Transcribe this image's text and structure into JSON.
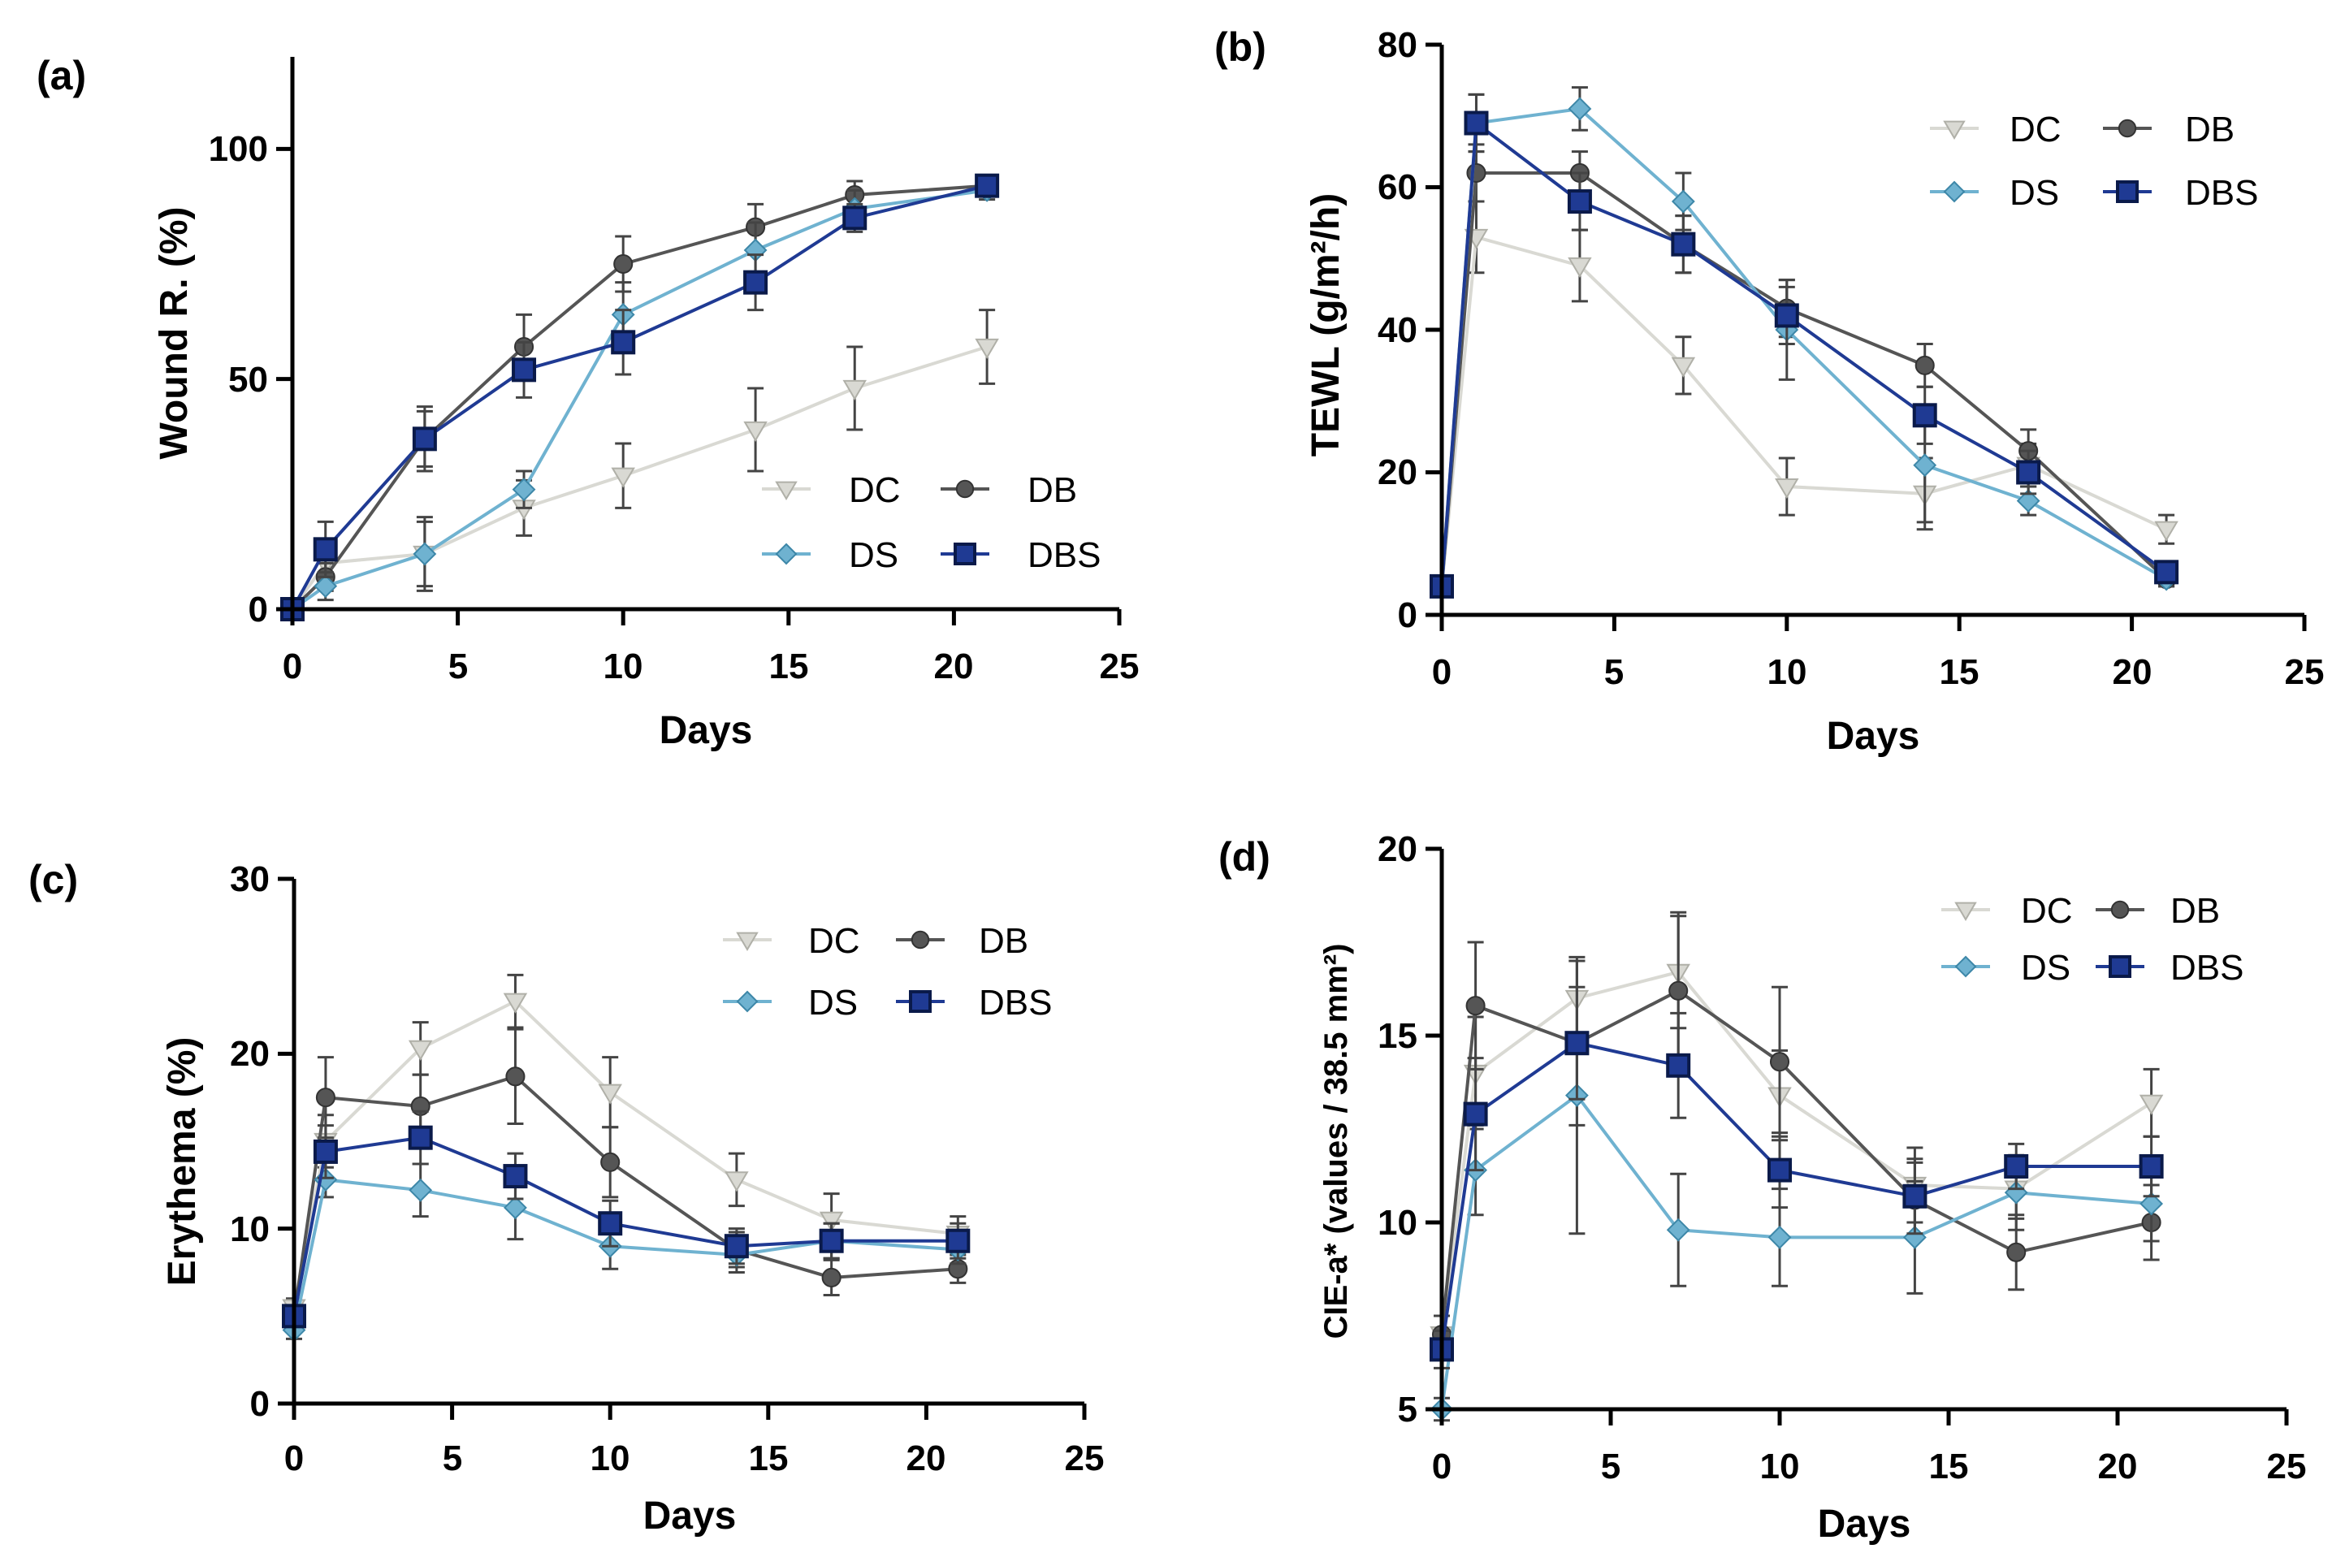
{
  "figure_title": "",
  "chart_data": [
    {
      "type": "line",
      "panel": "(a)",
      "title": "",
      "xlabel": "Days",
      "ylabel": "Wound R. (%)",
      "xlim": [
        0,
        25
      ],
      "ylim": [
        0,
        120
      ],
      "x_ticks": [
        "0",
        "5",
        "10",
        "15",
        "20",
        "25"
      ],
      "y_ticks": [
        "0",
        "50",
        "100"
      ],
      "legend_position": "bottom-right",
      "x": [
        0,
        1,
        4,
        7,
        10,
        14,
        17,
        21
      ],
      "series": [
        {
          "name": "DC",
          "color": "#d9d9d3",
          "marker": "triangle-down",
          "values": [
            0,
            10,
            12,
            22,
            29,
            39,
            48,
            57
          ],
          "errors": [
            0,
            4,
            8,
            6,
            7,
            9,
            9,
            8
          ]
        },
        {
          "name": "DB",
          "color": "#555555",
          "marker": "circle",
          "values": [
            0,
            7,
            37,
            57,
            75,
            83,
            90,
            92
          ],
          "errors": [
            0,
            3,
            6,
            7,
            6,
            5,
            3,
            2
          ]
        },
        {
          "name": "DS",
          "color": "#6fb2d0",
          "marker": "diamond",
          "values": [
            0,
            5,
            12,
            26,
            64,
            78,
            87,
            91
          ],
          "errors": [
            0,
            3,
            7,
            4,
            7,
            6,
            4,
            2
          ]
        },
        {
          "name": "DBS",
          "color": "#1f3a93",
          "marker": "square",
          "values": [
            0,
            13,
            37,
            52,
            58,
            71,
            85,
            92
          ],
          "errors": [
            0,
            6,
            7,
            6,
            7,
            6,
            3,
            2
          ]
        }
      ]
    },
    {
      "type": "line",
      "panel": "(b)",
      "title": "",
      "xlabel": "Days",
      "ylabel": "TEWL (g/m²/h)",
      "xlim": [
        0,
        25
      ],
      "ylim": [
        0,
        80
      ],
      "x_ticks": [
        "0",
        "5",
        "10",
        "15",
        "20",
        "25"
      ],
      "y_ticks": [
        "0",
        "20",
        "40",
        "60",
        "80"
      ],
      "legend_position": "top-right",
      "x": [
        0,
        1,
        4,
        7,
        10,
        14,
        17,
        21
      ],
      "series": [
        {
          "name": "DC",
          "color": "#d9d9d3",
          "marker": "triangle-down",
          "values": [
            4,
            53,
            49,
            35,
            18,
            17,
            21,
            12
          ],
          "errors": [
            1,
            5,
            5,
            4,
            4,
            5,
            3,
            2
          ]
        },
        {
          "name": "DB",
          "color": "#555555",
          "marker": "circle",
          "values": [
            4,
            62,
            62,
            52,
            43,
            35,
            23,
            5
          ],
          "errors": [
            1,
            4,
            3,
            4,
            4,
            3,
            3,
            1
          ]
        },
        {
          "name": "DS",
          "color": "#6fb2d0",
          "marker": "diamond",
          "values": [
            4,
            69,
            71,
            58,
            40,
            21,
            16,
            5
          ],
          "errors": [
            1,
            4,
            3,
            4,
            7,
            8,
            2,
            1
          ]
        },
        {
          "name": "DBS",
          "color": "#1f3a93",
          "marker": "square",
          "values": [
            4,
            69,
            58,
            52,
            42,
            28,
            20,
            6
          ],
          "errors": [
            1,
            4,
            4,
            4,
            4,
            4,
            3,
            1
          ]
        }
      ]
    },
    {
      "type": "line",
      "panel": "(c)",
      "title": "",
      "xlabel": "Days",
      "ylabel": "Erythema (%)",
      "xlim": [
        0,
        25
      ],
      "ylim": [
        0,
        30
      ],
      "x_ticks": [
        "0",
        "5",
        "10",
        "15",
        "20",
        "25"
      ],
      "y_ticks": [
        "0",
        "10",
        "20",
        "30"
      ],
      "legend_position": "top-right",
      "x": [
        0,
        1,
        4,
        7,
        10,
        14,
        17,
        21
      ],
      "series": [
        {
          "name": "DC",
          "color": "#d9d9d3",
          "marker": "triangle-down",
          "values": [
            5.5,
            15,
            20.3,
            23,
            17.8,
            12.8,
            10.5,
            9.7
          ],
          "errors": [
            0.5,
            1.5,
            1.5,
            1.5,
            2,
            1.5,
            1.5,
            1
          ]
        },
        {
          "name": "DB",
          "color": "#555555",
          "marker": "circle",
          "values": [
            5,
            17.5,
            17,
            18.7,
            13.8,
            8.8,
            7.2,
            7.7
          ],
          "errors": [
            0.5,
            2.3,
            1.8,
            2.7,
            2,
            1,
            1,
            0.8
          ]
        },
        {
          "name": "DS",
          "color": "#6fb2d0",
          "marker": "diamond",
          "values": [
            4.2,
            12.8,
            12.2,
            11.2,
            9,
            8.5,
            9.3,
            8.8
          ],
          "errors": [
            0.5,
            1,
            1.5,
            1.8,
            1.3,
            1,
            1,
            0.8
          ]
        },
        {
          "name": "DBS",
          "color": "#1f3a93",
          "marker": "square",
          "values": [
            5,
            14.4,
            15.2,
            13,
            10.3,
            9,
            9.3,
            9.3
          ],
          "errors": [
            0.5,
            1.5,
            1.5,
            1.3,
            1.3,
            1,
            1,
            1
          ]
        }
      ]
    },
    {
      "type": "line",
      "panel": "(d)",
      "title": "",
      "xlabel": "Days",
      "ylabel": "CIE-a* (values / 38.5 mm²)",
      "xlim": [
        0,
        25
      ],
      "ylim": [
        5,
        20
      ],
      "x_ticks": [
        "0",
        "5",
        "10",
        "15",
        "20",
        "25"
      ],
      "y_ticks": [
        "5",
        "10",
        "15",
        "20"
      ],
      "legend_position": "top-right",
      "x": [
        0,
        1,
        4,
        7,
        10,
        14,
        17,
        21
      ],
      "series": [
        {
          "name": "DC",
          "color": "#d9d9d3",
          "marker": "triangle-down",
          "values": [
            7,
            14,
            16,
            16.7,
            13.4,
            11,
            10.9,
            13.2
          ],
          "errors": [
            0.5,
            1.5,
            1,
            1.5,
            1.2,
            1,
            0.8,
            0.9
          ]
        },
        {
          "name": "DB",
          "color": "#555555",
          "marker": "circle",
          "values": [
            7,
            15.8,
            14.8,
            16.2,
            14.3,
            10.6,
            9.2,
            10
          ],
          "errors": [
            0.5,
            1.7,
            2.2,
            2.1,
            2,
            1,
            1,
            1
          ]
        },
        {
          "name": "DS",
          "color": "#6fb2d0",
          "marker": "diamond",
          "values": [
            5,
            11.4,
            13.4,
            9.8,
            9.6,
            9.6,
            10.8,
            10.5
          ],
          "errors": [
            0.3,
            1.2,
            3.7,
            1.5,
            1.3,
            1.5,
            1,
            1
          ]
        },
        {
          "name": "DBS",
          "color": "#1f3a93",
          "marker": "square",
          "values": [
            6.6,
            12.9,
            14.8,
            14.2,
            11.4,
            10.7,
            11.5,
            11.5
          ],
          "errors": [
            0.5,
            1.5,
            1.5,
            1.4,
            1,
            1,
            0.6,
            0.8
          ]
        }
      ]
    }
  ]
}
